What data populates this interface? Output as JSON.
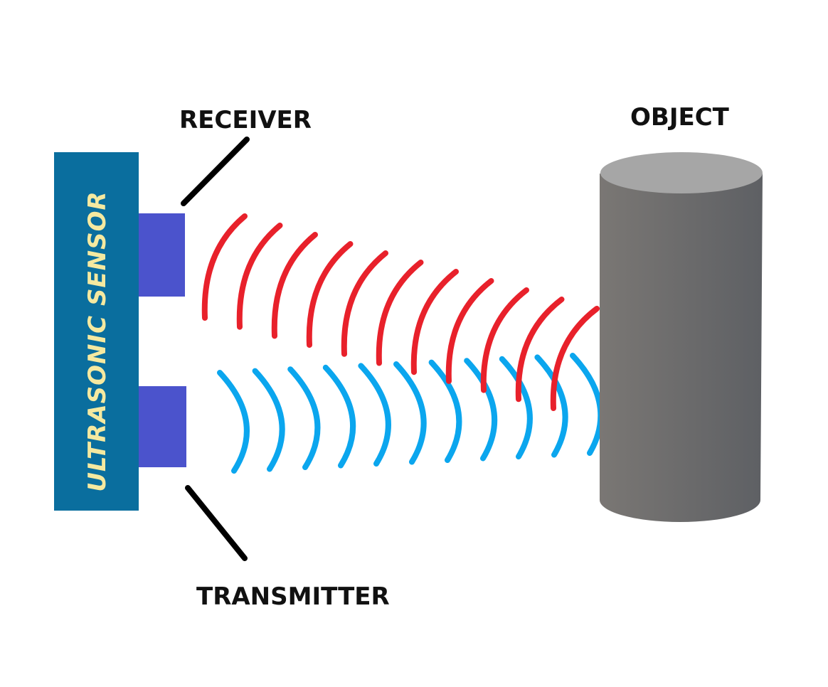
{
  "labels": {
    "receiver": "RECEIVER",
    "transmitter": "TRANSMITTER",
    "object": "OBJECT",
    "sensor": "ULTRASONIC SENSOR"
  },
  "colors": {
    "sensor_body": "#0A6E9E",
    "sensor_text": "#F5E9A0",
    "module": "#4B53CC",
    "received_wave": "#E8212B",
    "transmitted_wave": "#0BA6EE",
    "leader_line": "#000000",
    "object_top": "#A6A6A6",
    "object_side_left": "#7A7774",
    "object_side_right": "#5E6064"
  },
  "waves": {
    "received_count": 11,
    "transmitted_count": 11
  }
}
